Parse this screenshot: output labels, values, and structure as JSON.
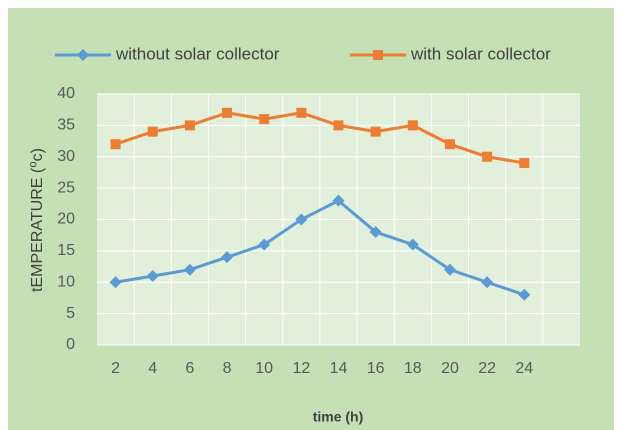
{
  "chart_data": {
    "type": "line",
    "x_label": "time (h)",
    "y_label": "tEMPERATURE (⁰c)",
    "categories": [
      "2",
      "4",
      "6",
      "8",
      "10",
      "12",
      "14",
      "16",
      "18",
      "20",
      "22",
      "24",
      null
    ],
    "series": [
      {
        "name": "without solar collector",
        "color": "#5b9bd5",
        "marker": "diamond",
        "values": [
          10,
          11,
          12,
          14,
          16,
          20,
          23,
          18,
          16,
          12,
          10,
          8,
          null
        ]
      },
      {
        "name": "with solar collector",
        "color": "#ed7d31",
        "marker": "square",
        "values": [
          32,
          34,
          35,
          37,
          36,
          37,
          35,
          34,
          35,
          32,
          30,
          29,
          null
        ]
      }
    ],
    "ylim": [
      0,
      40
    ],
    "yticks": [
      0,
      5,
      10,
      15,
      20,
      25,
      30,
      35,
      40
    ],
    "grid": true,
    "legend": "top"
  }
}
